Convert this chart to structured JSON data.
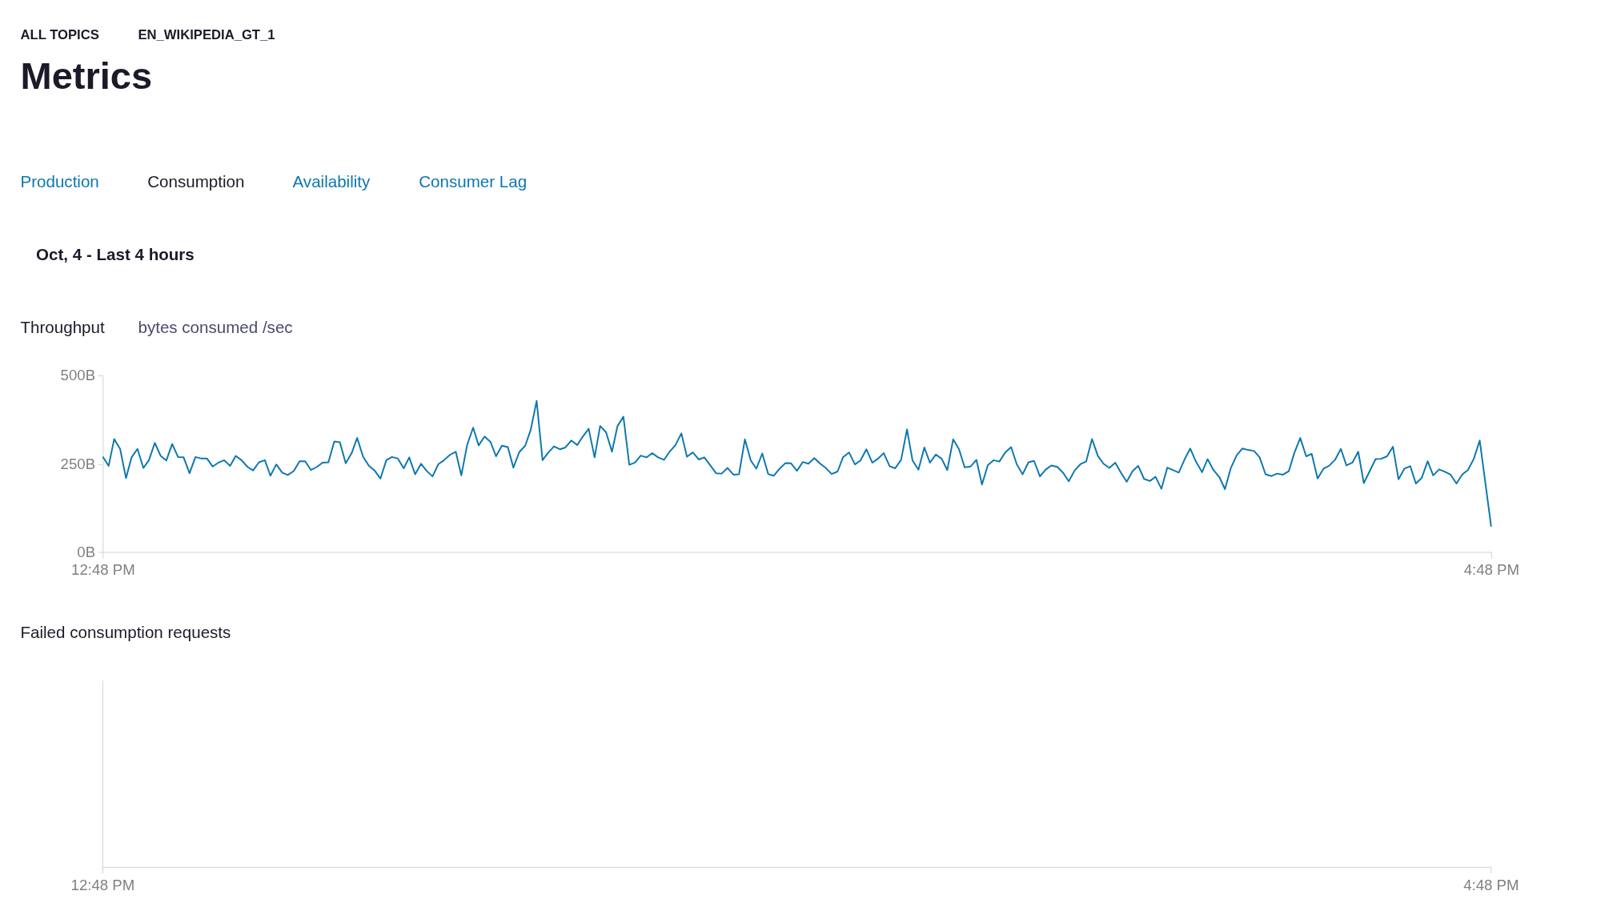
{
  "chart_data": [
    {
      "type": "other",
      "title": "Metrics",
      "annotations": [
        "ALL TOPICS",
        "EN_WIKIPEDIA_GT_1",
        "Production",
        "Consumption",
        "Availability",
        "Consumer Lag",
        "Oct, 4 - Last 4 hours"
      ]
    },
    {
      "type": "line",
      "title": "Throughput",
      "subtitle": "bytes consumed /sec",
      "x": [
        12.8,
        12.817,
        12.833,
        12.85,
        12.867,
        12.883,
        12.9,
        12.917,
        12.933,
        12.95,
        12.967,
        12.983,
        13,
        13.017,
        13.033,
        13.05,
        13.067,
        13.083,
        13.1,
        13.117,
        13.133,
        13.15,
        13.167,
        13.183,
        13.2,
        13.217,
        13.233,
        13.25,
        13.267,
        13.283,
        13.3,
        13.317,
        13.333,
        13.35,
        13.367,
        13.383,
        13.4,
        13.417,
        13.433,
        13.45,
        13.467,
        13.483,
        13.5,
        13.517,
        13.533,
        13.55,
        13.567,
        13.583,
        13.6,
        13.617,
        13.633,
        13.65,
        13.667,
        13.683,
        13.7,
        13.717,
        13.733,
        13.75,
        13.767,
        13.783,
        13.8,
        13.817,
        13.833,
        13.85,
        13.867,
        13.883,
        13.9,
        13.917,
        13.933,
        13.95,
        13.967,
        13.983,
        14,
        14.017,
        14.033,
        14.05,
        14.067,
        14.083,
        14.1,
        14.117,
        14.133,
        14.15,
        14.167,
        14.183,
        14.2,
        14.217,
        14.233,
        14.25,
        14.267,
        14.283,
        14.3,
        14.317,
        14.333,
        14.35,
        14.367,
        14.383,
        14.4,
        14.417,
        14.433,
        14.45,
        14.467,
        14.483,
        14.5,
        14.517,
        14.533,
        14.55,
        14.567,
        14.583,
        14.6,
        14.617,
        14.633,
        14.65,
        14.667,
        14.683,
        14.7,
        14.717,
        14.733,
        14.75,
        14.767,
        14.783,
        14.8,
        14.817,
        14.833,
        14.85,
        14.867,
        14.883,
        14.9,
        14.917,
        14.933,
        14.95,
        14.967,
        14.983,
        15,
        15.017,
        15.033,
        15.05,
        15.067,
        15.083,
        15.1,
        15.117,
        15.133,
        15.15,
        15.167,
        15.183,
        15.2,
        15.217,
        15.233,
        15.25,
        15.267,
        15.283,
        15.3,
        15.317,
        15.333,
        15.35,
        15.367,
        15.383,
        15.4,
        15.417,
        15.433,
        15.45,
        15.467,
        15.483,
        15.5,
        15.517,
        15.533,
        15.55,
        15.567,
        15.583,
        15.6,
        15.617,
        15.633,
        15.65,
        15.667,
        15.683,
        15.7,
        15.717,
        15.733,
        15.75,
        15.767,
        15.783,
        15.8,
        15.817,
        15.833,
        15.85,
        15.867,
        15.883,
        15.9,
        15.917,
        15.933,
        15.95,
        15.967,
        15.983,
        16,
        16.017,
        16.033,
        16.05,
        16.067,
        16.083,
        16.1,
        16.117,
        16.133,
        16.15,
        16.167,
        16.183,
        16.2,
        16.217,
        16.233,
        16.25,
        16.267,
        16.283,
        16.3,
        16.317,
        16.333,
        16.35,
        16.367,
        16.383,
        16.4,
        16.417,
        16.433,
        16.45,
        16.467,
        16.483,
        16.5,
        16.517,
        16.533,
        16.55,
        16.567,
        16.583,
        16.6,
        16.617,
        16.633,
        16.65,
        16.667,
        16.683,
        16.7,
        16.717,
        16.733,
        16.75,
        16.767,
        16.8
      ],
      "series": [
        {
          "color": "#0b77b0",
          "values": [
            270,
            244,
            320,
            292,
            209,
            268,
            292,
            238,
            260,
            309,
            272,
            259,
            306,
            269,
            268,
            223,
            269,
            265,
            265,
            242,
            253,
            260,
            244,
            272,
            260,
            241,
            231,
            254,
            260,
            216,
            248,
            225,
            218,
            229,
            257,
            257,
            232,
            241,
            253,
            254,
            313,
            311,
            251,
            280,
            323,
            270,
            244,
            231,
            208,
            260,
            269,
            265,
            237,
            268,
            220,
            250,
            230,
            214,
            249,
            260,
            275,
            284,
            217,
            304,
            352,
            302,
            327,
            312,
            271,
            301,
            297,
            239,
            283,
            301,
            346,
            428,
            260,
            281,
            299,
            291,
            296,
            316,
            303,
            327,
            349,
            268,
            357,
            339,
            284,
            357,
            383,
            247,
            253,
            273,
            268,
            280,
            268,
            261,
            284,
            303,
            336,
            270,
            282,
            262,
            268,
            246,
            223,
            222,
            238,
            219,
            220,
            319,
            259,
            236,
            279,
            221,
            216,
            236,
            252,
            251,
            230,
            255,
            250,
            266,
            250,
            238,
            221,
            228,
            269,
            282,
            248,
            259,
            291,
            253,
            264,
            280,
            243,
            237,
            261,
            347,
            259,
            233,
            296,
            253,
            276,
            264,
            232,
            319,
            291,
            240,
            242,
            261,
            191,
            246,
            260,
            256,
            282,
            297,
            249,
            220,
            254,
            258,
            214,
            234,
            245,
            241,
            224,
            200,
            231,
            249,
            256,
            320,
            272,
            250,
            238,
            253,
            225,
            199,
            229,
            244,
            207,
            201,
            213,
            179,
            239,
            232,
            225,
            263,
            293,
            255,
            226,
            263,
            232,
            212,
            178,
            238,
            274,
            293,
            289,
            286,
            268,
            220,
            215,
            222,
            219,
            229,
            281,
            323,
            271,
            278,
            208,
            236,
            244,
            261,
            292,
            245,
            253,
            284,
            195,
            229,
            263,
            264,
            271,
            298,
            206,
            236,
            243,
            194,
            210,
            257,
            217,
            234,
            227,
            219,
            194,
            220,
            232,
            264,
            316,
            72
          ]
        }
      ],
      "xlim": [
        12.8,
        16.8
      ],
      "xticks": [
        {
          "value": 12.8,
          "label": "12:48 PM"
        },
        {
          "value": 16.8,
          "label": "4:48 PM"
        }
      ],
      "ylim": [
        0,
        500
      ],
      "yticks": [
        {
          "value": 0,
          "label": "0B"
        },
        {
          "value": 250,
          "label": "250B"
        },
        {
          "value": 500,
          "label": "500B"
        }
      ]
    },
    {
      "type": "other",
      "title": "Failed consumption requests",
      "annotations": [
        "12:48 PM",
        "4:48 PM"
      ]
    }
  ]
}
